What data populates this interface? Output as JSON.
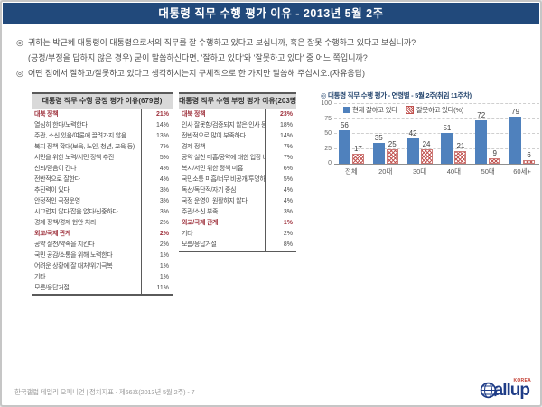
{
  "page": {
    "title": "대통령 직무 수행 평가 이유 - 2013년 5월 2주",
    "questions": [
      {
        "bullet": "◎",
        "text": "귀하는 박근혜 대통령이 대통령으로서의 직무를 잘 수행하고 있다고 보십니까, 혹은 잘못 수행하고 있다고 보십니까?"
      },
      {
        "bullet": "",
        "text": "(긍정/부정을 답하지 않은 경우) 굳이 말씀하신다면, '잘하고 있다'와 '잘못하고 있다' 중 어느 쪽입니까?"
      },
      {
        "bullet": "◎",
        "text": "어떤 점에서 잘하고/잘못하고  있다고 생각하시는지 구체적으로 한 가지만 말씀해 주십시오.(자유응답)"
      }
    ]
  },
  "positive_table": {
    "header": "대통령 직무 수행 긍정 평가 이유(679명)",
    "rows": [
      {
        "label": "대북 정책",
        "value": "21%",
        "highlight": true
      },
      {
        "label": "열심히 한다/노력한다",
        "value": "14%"
      },
      {
        "label": "주관, 소신 있음/여론에 끌려가지 않음",
        "value": "13%"
      },
      {
        "label": "복지 정책 확대(보육, 노인, 청년, 교육 등)",
        "value": "7%"
      },
      {
        "label": "서민을 위한 노력/서민 정책 추진",
        "value": "5%"
      },
      {
        "label": "신뢰/믿음이 간다",
        "value": "4%"
      },
      {
        "label": "전반적으로 잘한다",
        "value": "4%"
      },
      {
        "label": "추진력이 있다",
        "value": "3%"
      },
      {
        "label": "안정적인 국정운영",
        "value": "3%"
      },
      {
        "label": "시끄럽지 않다/잡음 없다/신중하다",
        "value": "3%"
      },
      {
        "label": "경제 정책/경제 현안 처리",
        "value": "2%"
      },
      {
        "label": "외교/국제 관계",
        "value": "2%",
        "highlight": true
      },
      {
        "label": "공약 실천/약속을 지킨다",
        "value": "2%"
      },
      {
        "label": "국민 공감/소통을 위해 노력한다",
        "value": "1%"
      },
      {
        "label": "어려운 상황에 잘 대처/위기극복",
        "value": "1%"
      },
      {
        "label": "기타",
        "value": "1%"
      },
      {
        "label": "모름/응답거절",
        "value": "11%"
      }
    ]
  },
  "negative_table": {
    "header": "대통령 직무 수행 부정 평가 이유(203명)",
    "rows": [
      {
        "label": "대북 정책",
        "value": "23%",
        "highlight": true
      },
      {
        "label": "인사 잘못함/검증되지 않은 인사 등용",
        "value": "18%"
      },
      {
        "label": "전반적으로 많이 부족하다",
        "value": "14%"
      },
      {
        "label": "경제 정책",
        "value": "7%"
      },
      {
        "label": "공약 실천 미흡/공약에 대한 입장 바뀜",
        "value": "7%"
      },
      {
        "label": "복지/서민 위한 정책 미흡",
        "value": "6%"
      },
      {
        "label": "국민소통 미흡/너무 비공개/투명하지 않다",
        "value": "5%"
      },
      {
        "label": "독선/독단적/자기 중심",
        "value": "4%"
      },
      {
        "label": "국정 운영이 원활하지 않다",
        "value": "4%"
      },
      {
        "label": "주관/소신 부족",
        "value": "3%"
      },
      {
        "label": "외교/국제 관계",
        "value": "1%",
        "highlight": true
      },
      {
        "label": "기타",
        "value": "2%"
      },
      {
        "label": "모름/응답거절",
        "value": "8%"
      }
    ]
  },
  "chart_data": {
    "type": "bar",
    "title_bullet": "◎",
    "title": "대통령 직무 수행 평가 - 연령별 - 5월 2주(취임 11주차)",
    "categories": [
      "전체",
      "20대",
      "30대",
      "40대",
      "50대",
      "60세+"
    ],
    "series": [
      {
        "name": "현재 잘하고 있다",
        "color": "#4f81bd",
        "style": "solid",
        "values": [
          56,
          35,
          42,
          51,
          72,
          79
        ]
      },
      {
        "name": "잘못하고 있다(%)",
        "color": "#c0504d",
        "style": "hatched",
        "values": [
          17,
          25,
          24,
          21,
          9,
          6
        ]
      }
    ],
    "ylim": [
      0,
      100
    ],
    "yticks": [
      0,
      25,
      50,
      75,
      100
    ],
    "grid": "dashed-horizontal",
    "legend_position": "top-left-inside"
  },
  "footer": {
    "source": "한국갤럽 데일리 오피니언 | 정치지표 - 제66호(2013년 5월 2주) - 7",
    "logo_text": "allup",
    "logo_full": "Gallup",
    "logo_sub": "KOREA"
  },
  "colors": {
    "titlebar": "#21497b",
    "bar_positive": "#4f81bd",
    "bar_negative": "#c0504d",
    "highlight_red": "#a03540",
    "logo_navy": "#1e3c87"
  }
}
